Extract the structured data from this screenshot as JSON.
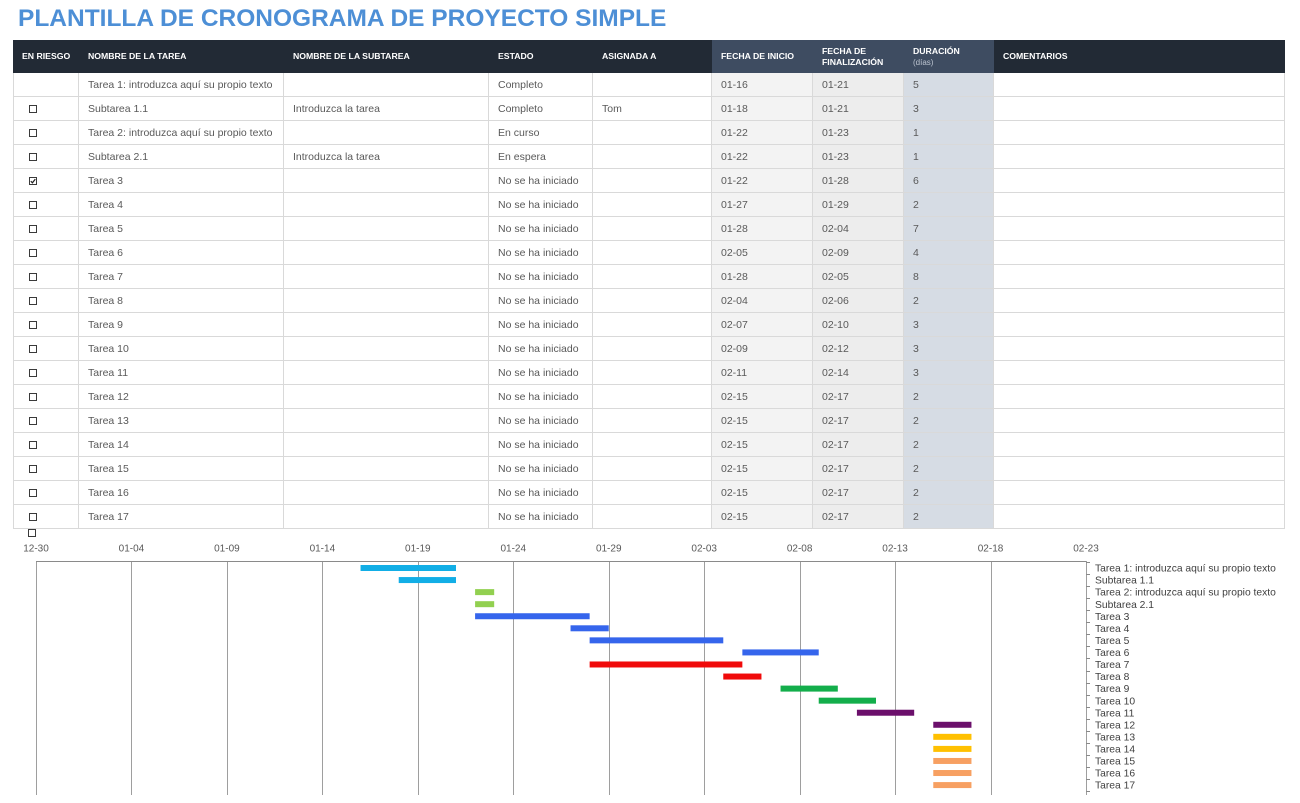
{
  "title": "PLANTILLA DE CRONOGRAMA DE PROYECTO SIMPLE",
  "theme": {
    "title_color": "#4D8FD6",
    "header_bg": "#222A35",
    "header_date_bg": "#3E4C61",
    "start_col_bg": "#F3F3F3",
    "end_col_bg": "#EDEDED",
    "duration_col_bg": "#D6DCE4"
  },
  "table": {
    "headers": {
      "at_risk": "EN RIESGO",
      "task": "NOMBRE DE LA TAREA",
      "subtask": "NOMBRE DE LA SUBTAREA",
      "status": "ESTADO",
      "assigned": "ASIGNADA A",
      "start": "FECHA DE INICIO",
      "end": "FECHA DE FINALIZACIÓN",
      "duration": "DURACIÓN",
      "duration_unit": "(días)",
      "comments": "COMENTARIOS"
    },
    "rows": [
      {
        "at_risk": null,
        "task": "Tarea 1: introduzca aquí su propio texto",
        "subtask": "",
        "status": "Completo",
        "assigned": "",
        "start": "01-16",
        "end": "01-21",
        "duration": 5,
        "comments": ""
      },
      {
        "at_risk": false,
        "task": "Subtarea 1.1",
        "subtask": "Introduzca la tarea",
        "status": "Completo",
        "assigned": "Tom",
        "start": "01-18",
        "end": "01-21",
        "duration": 3,
        "comments": ""
      },
      {
        "at_risk": false,
        "task": "Tarea 2: introduzca aquí su propio texto",
        "subtask": "",
        "status": "En curso",
        "assigned": "",
        "start": "01-22",
        "end": "01-23",
        "duration": 1,
        "comments": ""
      },
      {
        "at_risk": false,
        "task": "Subtarea 2.1",
        "subtask": "Introduzca la tarea",
        "status": "En espera",
        "assigned": "",
        "start": "01-22",
        "end": "01-23",
        "duration": 1,
        "comments": ""
      },
      {
        "at_risk": true,
        "task": "Tarea 3",
        "subtask": "",
        "status": "No se ha iniciado",
        "assigned": "",
        "start": "01-22",
        "end": "01-28",
        "duration": 6,
        "comments": ""
      },
      {
        "at_risk": false,
        "task": "Tarea 4",
        "subtask": "",
        "status": "No se ha iniciado",
        "assigned": "",
        "start": "01-27",
        "end": "01-29",
        "duration": 2,
        "comments": ""
      },
      {
        "at_risk": false,
        "task": "Tarea 5",
        "subtask": "",
        "status": "No se ha iniciado",
        "assigned": "",
        "start": "01-28",
        "end": "02-04",
        "duration": 7,
        "comments": ""
      },
      {
        "at_risk": false,
        "task": "Tarea 6",
        "subtask": "",
        "status": "No se ha iniciado",
        "assigned": "",
        "start": "02-05",
        "end": "02-09",
        "duration": 4,
        "comments": ""
      },
      {
        "at_risk": false,
        "task": "Tarea 7",
        "subtask": "",
        "status": "No se ha iniciado",
        "assigned": "",
        "start": "01-28",
        "end": "02-05",
        "duration": 8,
        "comments": ""
      },
      {
        "at_risk": false,
        "task": "Tarea 8",
        "subtask": "",
        "status": "No se ha iniciado",
        "assigned": "",
        "start": "02-04",
        "end": "02-06",
        "duration": 2,
        "comments": ""
      },
      {
        "at_risk": false,
        "task": "Tarea 9",
        "subtask": "",
        "status": "No se ha iniciado",
        "assigned": "",
        "start": "02-07",
        "end": "02-10",
        "duration": 3,
        "comments": ""
      },
      {
        "at_risk": false,
        "task": "Tarea 10",
        "subtask": "",
        "status": "No se ha iniciado",
        "assigned": "",
        "start": "02-09",
        "end": "02-12",
        "duration": 3,
        "comments": ""
      },
      {
        "at_risk": false,
        "task": "Tarea 11",
        "subtask": "",
        "status": "No se ha iniciado",
        "assigned": "",
        "start": "02-11",
        "end": "02-14",
        "duration": 3,
        "comments": ""
      },
      {
        "at_risk": false,
        "task": "Tarea 12",
        "subtask": "",
        "status": "No se ha iniciado",
        "assigned": "",
        "start": "02-15",
        "end": "02-17",
        "duration": 2,
        "comments": ""
      },
      {
        "at_risk": false,
        "task": "Tarea 13",
        "subtask": "",
        "status": "No se ha iniciado",
        "assigned": "",
        "start": "02-15",
        "end": "02-17",
        "duration": 2,
        "comments": ""
      },
      {
        "at_risk": false,
        "task": "Tarea 14",
        "subtask": "",
        "status": "No se ha iniciado",
        "assigned": "",
        "start": "02-15",
        "end": "02-17",
        "duration": 2,
        "comments": ""
      },
      {
        "at_risk": false,
        "task": "Tarea 15",
        "subtask": "",
        "status": "No se ha iniciado",
        "assigned": "",
        "start": "02-15",
        "end": "02-17",
        "duration": 2,
        "comments": ""
      },
      {
        "at_risk": false,
        "task": "Tarea 16",
        "subtask": "",
        "status": "No se ha iniciado",
        "assigned": "",
        "start": "02-15",
        "end": "02-17",
        "duration": 2,
        "comments": ""
      },
      {
        "at_risk": false,
        "task": "Tarea 17",
        "subtask": "",
        "status": "No se ha iniciado",
        "assigned": "",
        "start": "02-15",
        "end": "02-17",
        "duration": 2,
        "comments": ""
      }
    ],
    "extra_checkbox": false
  },
  "chart_data": {
    "type": "bar",
    "orientation": "horizontal",
    "x_axis_side": "top",
    "category_axis_side": "right",
    "grid": "vertical",
    "xlim": [
      "12-30",
      "02-23"
    ],
    "x_ticks": [
      "12-30",
      "01-04",
      "01-09",
      "01-14",
      "01-19",
      "01-24",
      "01-29",
      "02-03",
      "02-08",
      "02-13",
      "02-18",
      "02-23"
    ],
    "categories": [
      "Tarea 1: introduzca aquí su propio texto",
      "Subtarea 1.1",
      "Tarea 2: introduzca aquí su propio texto",
      "Subtarea 2.1",
      "Tarea 3",
      "Tarea 4",
      "Tarea 5",
      "Tarea 6",
      "Tarea 7",
      "Tarea 8",
      "Tarea 9",
      "Tarea 10",
      "Tarea 11",
      "Tarea 12",
      "Tarea 13",
      "Tarea 14",
      "Tarea 15",
      "Tarea 16",
      "Tarea 17"
    ],
    "start": [
      "01-16",
      "01-18",
      "01-22",
      "01-22",
      "01-22",
      "01-27",
      "01-28",
      "02-05",
      "01-28",
      "02-04",
      "02-07",
      "02-09",
      "02-11",
      "02-15",
      "02-15",
      "02-15",
      "02-15",
      "02-15",
      "02-15"
    ],
    "end": [
      "01-21",
      "01-21",
      "01-23",
      "01-23",
      "01-28",
      "01-29",
      "02-04",
      "02-09",
      "02-05",
      "02-06",
      "02-10",
      "02-12",
      "02-14",
      "02-17",
      "02-17",
      "02-17",
      "02-17",
      "02-17",
      "02-17"
    ],
    "bar_colors": [
      "#12AEE6",
      "#12AEE6",
      "#92D050",
      "#92D050",
      "#3565EC",
      "#3565EC",
      "#3565EC",
      "#3565EC",
      "#F00A0A",
      "#F00A0A",
      "#13AE4B",
      "#13AE4B",
      "#6B0F6B",
      "#6B0F6B",
      "#FFC000",
      "#FFC000",
      "#F7A062",
      "#F7A062",
      "#F7A062"
    ]
  }
}
